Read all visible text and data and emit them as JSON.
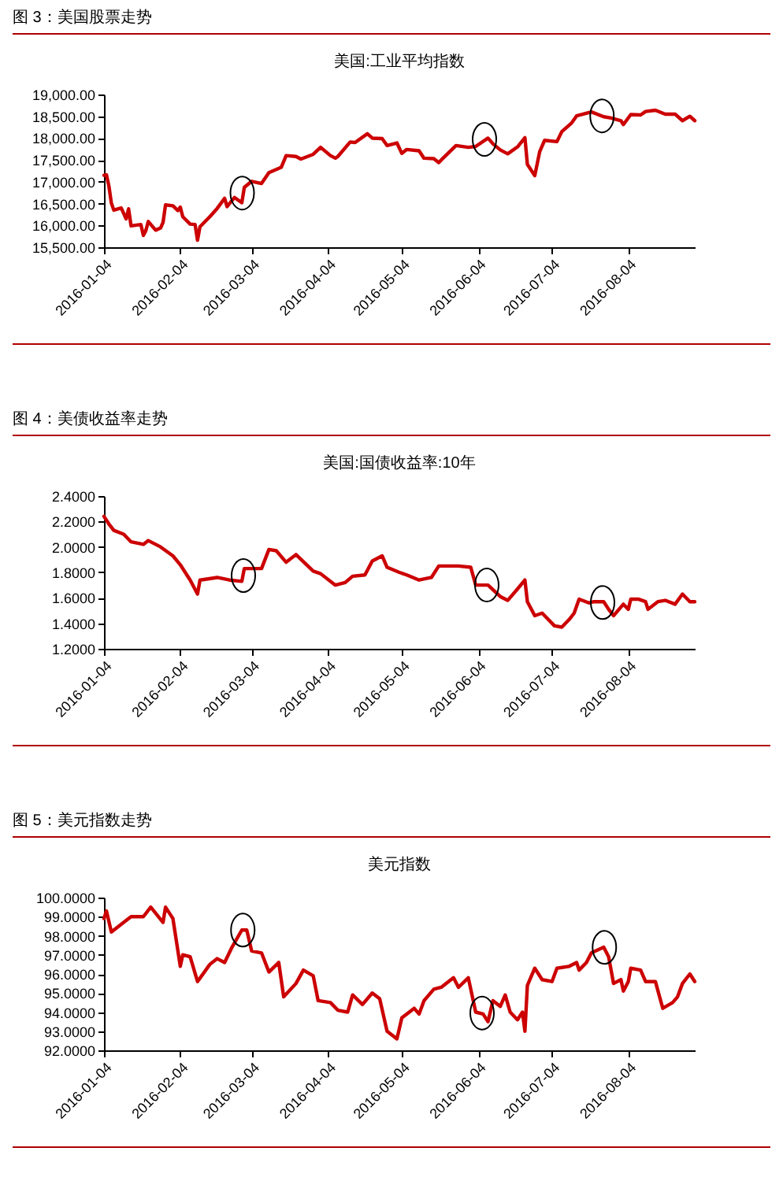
{
  "chart_data": [
    {
      "type": "line",
      "title": "图 3：美国股票走势",
      "subtitle": "美国:工业平均指数",
      "color": "#cc0000",
      "x": [
        "2016-01-04",
        "2016-01-05",
        "2016-01-06",
        "2016-01-07",
        "2016-01-08",
        "2016-01-11",
        "2016-01-13",
        "2016-01-14",
        "2016-01-15",
        "2016-01-19",
        "2016-01-20",
        "2016-01-21",
        "2016-01-22",
        "2016-01-25",
        "2016-01-27",
        "2016-01-28",
        "2016-01-29",
        "2016-02-01",
        "2016-02-03",
        "2016-02-04",
        "2016-02-05",
        "2016-02-08",
        "2016-02-10",
        "2016-02-11",
        "2016-02-12",
        "2016-02-16",
        "2016-02-19",
        "2016-02-22",
        "2016-02-23",
        "2016-02-26",
        "2016-02-29",
        "2016-03-01",
        "2016-03-04",
        "2016-03-08",
        "2016-03-11",
        "2016-03-16",
        "2016-03-18",
        "2016-03-22",
        "2016-03-24",
        "2016-03-29",
        "2016-04-01",
        "2016-04-05",
        "2016-04-07",
        "2016-04-08",
        "2016-04-13",
        "2016-04-15",
        "2016-04-20",
        "2016-04-22",
        "2016-04-26",
        "2016-04-28",
        "2016-05-02",
        "2016-05-04",
        "2016-05-06",
        "2016-05-11",
        "2016-05-13",
        "2016-05-17",
        "2016-05-19",
        "2016-05-20",
        "2016-05-26",
        "2016-05-31",
        "2016-06-03",
        "2016-06-08",
        "2016-06-10",
        "2016-06-13",
        "2016-06-16",
        "2016-06-20",
        "2016-06-23",
        "2016-06-24",
        "2016-06-27",
        "2016-06-29",
        "2016-07-01",
        "2016-07-06",
        "2016-07-08",
        "2016-07-12",
        "2016-07-14",
        "2016-07-20",
        "2016-07-25",
        "2016-07-28",
        "2016-08-01",
        "2016-08-02",
        "2016-08-05",
        "2016-08-09",
        "2016-08-11",
        "2016-08-15",
        "2016-08-19",
        "2016-08-23",
        "2016-08-25",
        "2016-08-26",
        "2016-08-29",
        "2016-08-30",
        "2016-08-31"
      ],
      "values": [
        17150,
        17160,
        16900,
        16510,
        16350,
        16400,
        16150,
        16380,
        15990,
        16020,
        15770,
        15880,
        16090,
        15890,
        15940,
        16070,
        16470,
        16450,
        16340,
        16420,
        16200,
        16030,
        16020,
        15660,
        15970,
        16200,
        16390,
        16620,
        16430,
        16640,
        16520,
        16870,
        17010,
        16960,
        17210,
        17330,
        17600,
        17580,
        17520,
        17630,
        17790,
        17600,
        17540,
        17580,
        17910,
        17900,
        18100,
        18000,
        17990,
        17830,
        17890,
        17650,
        17740,
        17710,
        17540,
        17530,
        17440,
        17500,
        17830,
        17790,
        17810,
        18000,
        17870,
        17730,
        17640,
        17800,
        18010,
        17400,
        17140,
        17690,
        17950,
        17920,
        18150,
        18350,
        18510,
        18600,
        18490,
        18460,
        18400,
        18310,
        18540,
        18530,
        18610,
        18640,
        18550,
        18550,
        18450,
        18400,
        18500,
        18450,
        18400
      ],
      "xlim": [
        "2016-01-04",
        "2016-08-31"
      ],
      "xticks": [
        "2016-01-04",
        "2016-02-04",
        "2016-03-04",
        "2016-04-04",
        "2016-05-04",
        "2016-06-04",
        "2016-07-04",
        "2016-08-04"
      ],
      "ylim": [
        15500,
        19000
      ],
      "yticks": [
        {
          "value": 15500,
          "label": "15,500.00"
        },
        {
          "value": 16000,
          "label": "16,000.00"
        },
        {
          "value": 16500,
          "label": "16,500.00"
        },
        {
          "value": 17000,
          "label": "17,000.00"
        },
        {
          "value": 17500,
          "label": "17,500.00"
        },
        {
          "value": 18000,
          "label": "18,000.00"
        },
        {
          "value": 18500,
          "label": "18,500.00"
        },
        {
          "value": 19000,
          "label": "19,000.00"
        }
      ]
    },
    {
      "type": "line",
      "title": "图 4：美债收益率走势",
      "subtitle": "美国:国债收益率:10年",
      "color": "#cc0000",
      "x": [
        "2016-01-04",
        "2016-01-06",
        "2016-01-08",
        "2016-01-12",
        "2016-01-15",
        "2016-01-20",
        "2016-01-22",
        "2016-01-27",
        "2016-02-01",
        "2016-02-04",
        "2016-02-08",
        "2016-02-11",
        "2016-02-12",
        "2016-02-19",
        "2016-02-24",
        "2016-02-29",
        "2016-03-01",
        "2016-03-08",
        "2016-03-11",
        "2016-03-14",
        "2016-03-18",
        "2016-03-22",
        "2016-03-29",
        "2016-04-01",
        "2016-04-07",
        "2016-04-11",
        "2016-04-14",
        "2016-04-19",
        "2016-04-22",
        "2016-04-26",
        "2016-04-28",
        "2016-05-03",
        "2016-05-06",
        "2016-05-11",
        "2016-05-16",
        "2016-05-19",
        "2016-05-24",
        "2016-05-27",
        "2016-06-01",
        "2016-06-03",
        "2016-06-08",
        "2016-06-13",
        "2016-06-16",
        "2016-06-20",
        "2016-06-23",
        "2016-06-24",
        "2016-06-27",
        "2016-06-30",
        "2016-07-05",
        "2016-07-08",
        "2016-07-11",
        "2016-07-13",
        "2016-07-15",
        "2016-07-19",
        "2016-07-21",
        "2016-07-25",
        "2016-07-27",
        "2016-07-29",
        "2016-08-02",
        "2016-08-04",
        "2016-08-05",
        "2016-08-08",
        "2016-08-11",
        "2016-08-12",
        "2016-08-16",
        "2016-08-19",
        "2016-08-23",
        "2016-08-26",
        "2016-08-29",
        "2016-08-31"
      ],
      "values": [
        2.24,
        2.18,
        2.13,
        2.1,
        2.04,
        2.02,
        2.05,
        2.0,
        1.93,
        1.86,
        1.74,
        1.63,
        1.74,
        1.76,
        1.74,
        1.73,
        1.83,
        1.83,
        1.98,
        1.97,
        1.88,
        1.94,
        1.81,
        1.79,
        1.7,
        1.72,
        1.77,
        1.78,
        1.89,
        1.93,
        1.84,
        1.8,
        1.78,
        1.74,
        1.76,
        1.85,
        1.85,
        1.85,
        1.84,
        1.7,
        1.7,
        1.61,
        1.58,
        1.67,
        1.74,
        1.57,
        1.46,
        1.48,
        1.38,
        1.37,
        1.43,
        1.48,
        1.59,
        1.56,
        1.57,
        1.57,
        1.51,
        1.46,
        1.55,
        1.51,
        1.59,
        1.59,
        1.57,
        1.51,
        1.57,
        1.58,
        1.55,
        1.63,
        1.57,
        1.57
      ],
      "xlim": [
        "2016-01-04",
        "2016-08-31"
      ],
      "xticks": [
        "2016-01-04",
        "2016-02-04",
        "2016-03-04",
        "2016-04-04",
        "2016-05-04",
        "2016-06-04",
        "2016-07-04",
        "2016-08-04"
      ],
      "ylim": [
        1.2,
        2.4
      ],
      "yticks": [
        {
          "value": 1.2,
          "label": "1.2000"
        },
        {
          "value": 1.4,
          "label": "1.4000"
        },
        {
          "value": 1.6,
          "label": "1.6000"
        },
        {
          "value": 1.8,
          "label": "1.8000"
        },
        {
          "value": 2.0,
          "label": "2.0000"
        },
        {
          "value": 2.2,
          "label": "2.2000"
        },
        {
          "value": 2.4,
          "label": "2.4000"
        }
      ]
    },
    {
      "type": "line",
      "title": "图 5：美元指数走势",
      "subtitle": "美元指数",
      "color": "#cc0000",
      "x": [
        "2016-01-04",
        "2016-01-05",
        "2016-01-07",
        "2016-01-12",
        "2016-01-15",
        "2016-01-20",
        "2016-01-23",
        "2016-01-28",
        "2016-01-29",
        "2016-02-01",
        "2016-02-04",
        "2016-02-05",
        "2016-02-08",
        "2016-02-11",
        "2016-02-16",
        "2016-02-19",
        "2016-02-22",
        "2016-02-25",
        "2016-02-29",
        "2016-03-02",
        "2016-03-04",
        "2016-03-08",
        "2016-03-11",
        "2016-03-15",
        "2016-03-17",
        "2016-03-22",
        "2016-03-25",
        "2016-03-29",
        "2016-03-31",
        "2016-04-05",
        "2016-04-08",
        "2016-04-12",
        "2016-04-14",
        "2016-04-18",
        "2016-04-22",
        "2016-04-25",
        "2016-04-28",
        "2016-05-02",
        "2016-05-04",
        "2016-05-09",
        "2016-05-11",
        "2016-05-13",
        "2016-05-17",
        "2016-05-20",
        "2016-05-25",
        "2016-05-27",
        "2016-05-31",
        "2016-06-03",
        "2016-06-06",
        "2016-06-08",
        "2016-06-10",
        "2016-06-13",
        "2016-06-15",
        "2016-06-17",
        "2016-06-20",
        "2016-06-22",
        "2016-06-23",
        "2016-06-24",
        "2016-06-27",
        "2016-06-30",
        "2016-07-04",
        "2016-07-06",
        "2016-07-11",
        "2016-07-14",
        "2016-07-15",
        "2016-07-18",
        "2016-07-20",
        "2016-07-25",
        "2016-07-27",
        "2016-07-29",
        "2016-08-01",
        "2016-08-02",
        "2016-08-04",
        "2016-08-05",
        "2016-08-09",
        "2016-08-11",
        "2016-08-15",
        "2016-08-18",
        "2016-08-22",
        "2016-08-24",
        "2016-08-26",
        "2016-08-29",
        "2016-08-31"
      ],
      "values": [
        98.9,
        99.3,
        98.2,
        98.7,
        99.0,
        99.0,
        99.5,
        98.7,
        99.5,
        98.9,
        96.4,
        97.0,
        96.9,
        95.6,
        96.5,
        96.8,
        96.6,
        97.4,
        98.3,
        98.3,
        97.2,
        97.1,
        96.1,
        96.6,
        94.8,
        95.5,
        96.2,
        95.9,
        94.6,
        94.5,
        94.1,
        94.0,
        94.9,
        94.4,
        95.0,
        94.7,
        93.0,
        92.6,
        93.7,
        94.2,
        93.9,
        94.6,
        95.2,
        95.3,
        95.8,
        95.3,
        95.8,
        94.0,
        93.9,
        93.5,
        94.6,
        94.3,
        94.9,
        94.0,
        93.6,
        94.0,
        93.0,
        95.4,
        96.3,
        95.7,
        95.6,
        96.3,
        96.4,
        96.6,
        96.2,
        96.6,
        97.1,
        97.4,
        96.9,
        95.5,
        95.7,
        95.1,
        95.6,
        96.3,
        96.2,
        95.6,
        95.6,
        94.2,
        94.5,
        94.8,
        95.5,
        96.0,
        95.6
      ],
      "xlim": [
        "2016-01-04",
        "2016-08-31"
      ],
      "xticks": [
        "2016-01-04",
        "2016-02-04",
        "2016-03-04",
        "2016-04-04",
        "2016-05-04",
        "2016-06-04",
        "2016-07-04",
        "2016-08-04"
      ],
      "ylim": [
        92,
        100
      ],
      "yticks": [
        {
          "value": 92,
          "label": "92.0000"
        },
        {
          "value": 93,
          "label": "93.0000"
        },
        {
          "value": 94,
          "label": "94.0000"
        },
        {
          "value": 95,
          "label": "95.0000"
        },
        {
          "value": 96,
          "label": "96.0000"
        },
        {
          "value": 97,
          "label": "97.0000"
        },
        {
          "value": 98,
          "label": "98.0000"
        },
        {
          "value": 99,
          "label": "99.0000"
        },
        {
          "value": 100,
          "label": "100.0000"
        }
      ]
    }
  ]
}
